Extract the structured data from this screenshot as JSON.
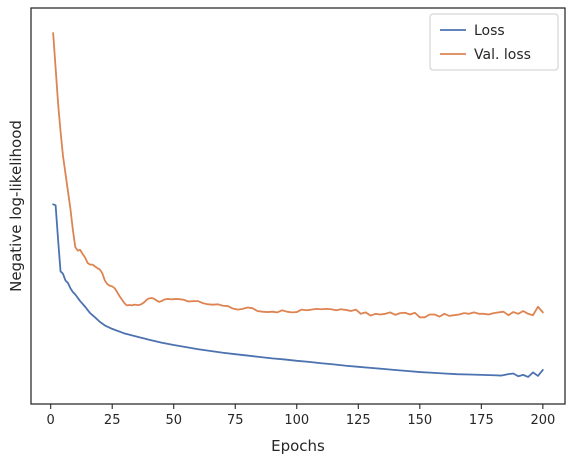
{
  "chart_data": {
    "type": "line",
    "title": "",
    "xlabel": "Epochs",
    "ylabel": "Negative log-likelihood",
    "xlim": [
      -8,
      209
    ],
    "ylim": [
      0,
      1
    ],
    "xticks": [
      0,
      25,
      50,
      75,
      100,
      125,
      150,
      175,
      200
    ],
    "grid": false,
    "legend_position": "top-right",
    "y_tick_labels": "none",
    "series": [
      {
        "name": "Loss",
        "color": "#4c72b0",
        "x": [
          1,
          2,
          3,
          4,
          5,
          6,
          7,
          8,
          9,
          10,
          12,
          14,
          16,
          18,
          20,
          22,
          25,
          30,
          35,
          40,
          45,
          50,
          55,
          60,
          65,
          70,
          75,
          80,
          85,
          90,
          95,
          100,
          105,
          110,
          115,
          120,
          125,
          130,
          135,
          140,
          145,
          150,
          155,
          160,
          165,
          170,
          175,
          180,
          183,
          186,
          188,
          190,
          192,
          194,
          196,
          198,
          200
        ],
        "y": [
          0.512,
          0.509,
          0.412,
          0.321,
          0.314,
          0.295,
          0.288,
          0.273,
          0.262,
          0.255,
          0.236,
          0.22,
          0.202,
          0.19,
          0.177,
          0.167,
          0.157,
          0.144,
          0.135,
          0.126,
          0.118,
          0.111,
          0.105,
          0.099,
          0.094,
          0.089,
          0.085,
          0.081,
          0.077,
          0.073,
          0.07,
          0.066,
          0.063,
          0.059,
          0.056,
          0.052,
          0.049,
          0.046,
          0.043,
          0.04,
          0.037,
          0.034,
          0.032,
          0.03,
          0.028,
          0.027,
          0.026,
          0.025,
          0.024,
          0.028,
          0.03,
          0.022,
          0.026,
          0.02,
          0.033,
          0.023,
          0.04
        ]
      },
      {
        "name": "Val. loss",
        "color": "#dd8452",
        "x": [
          1,
          2,
          3,
          4,
          5,
          6,
          7,
          8,
          9,
          10,
          11,
          12,
          13,
          14,
          15,
          16,
          17,
          18,
          19,
          20,
          21,
          22,
          23,
          24,
          25,
          26,
          27,
          28,
          29,
          30,
          31,
          32,
          33,
          34,
          35,
          36,
          37,
          38,
          39,
          40,
          41,
          42,
          43,
          44,
          45,
          46,
          47,
          48,
          49,
          50,
          52,
          54,
          56,
          58,
          60,
          62,
          64,
          66,
          68,
          70,
          72,
          74,
          76,
          78,
          80,
          82,
          84,
          86,
          88,
          90,
          92,
          94,
          96,
          98,
          100,
          102,
          104,
          106,
          108,
          110,
          112,
          114,
          116,
          118,
          120,
          122,
          124,
          126,
          128,
          130,
          132,
          134,
          136,
          138,
          140,
          142,
          144,
          146,
          148,
          150,
          152,
          154,
          156,
          158,
          160,
          162,
          164,
          166,
          168,
          170,
          172,
          174,
          176,
          178,
          180,
          182,
          184,
          186,
          188,
          190,
          192,
          194,
          196,
          198,
          200
        ],
        "y": [
          1.0,
          0.9,
          0.8,
          0.72,
          0.65,
          0.6,
          0.55,
          0.5,
          0.44,
          0.39,
          0.38,
          0.382,
          0.37,
          0.36,
          0.345,
          0.34,
          0.34,
          0.335,
          0.33,
          0.326,
          0.315,
          0.295,
          0.285,
          0.28,
          0.278,
          0.273,
          0.262,
          0.25,
          0.24,
          0.23,
          0.224,
          0.225,
          0.224,
          0.226,
          0.225,
          0.225,
          0.228,
          0.233,
          0.24,
          0.244,
          0.245,
          0.243,
          0.238,
          0.234,
          0.236,
          0.24,
          0.242,
          0.242,
          0.241,
          0.242,
          0.242,
          0.24,
          0.235,
          0.236,
          0.236,
          0.23,
          0.227,
          0.226,
          0.227,
          0.223,
          0.222,
          0.215,
          0.212,
          0.214,
          0.218,
          0.216,
          0.208,
          0.206,
          0.205,
          0.206,
          0.204,
          0.21,
          0.206,
          0.204,
          0.205,
          0.212,
          0.21,
          0.212,
          0.214,
          0.213,
          0.214,
          0.213,
          0.21,
          0.213,
          0.211,
          0.208,
          0.212,
          0.2,
          0.204,
          0.195,
          0.2,
          0.198,
          0.2,
          0.204,
          0.197,
          0.202,
          0.203,
          0.198,
          0.203,
          0.19,
          0.19,
          0.198,
          0.198,
          0.192,
          0.2,
          0.194,
          0.196,
          0.198,
          0.202,
          0.2,
          0.204,
          0.2,
          0.2,
          0.198,
          0.202,
          0.204,
          0.206,
          0.196,
          0.205,
          0.2,
          0.208,
          0.2,
          0.196,
          0.22,
          0.204
        ]
      }
    ]
  }
}
